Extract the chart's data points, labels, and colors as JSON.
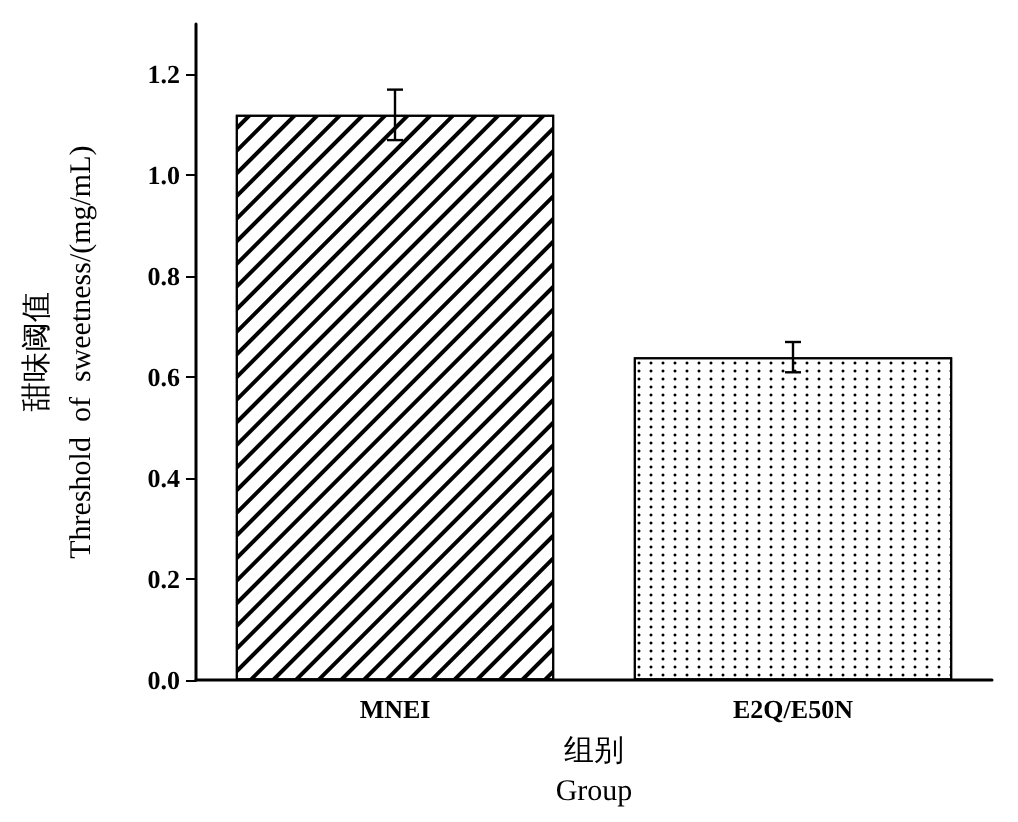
{
  "chart_data": {
    "type": "bar",
    "categories": [
      "MNEI",
      "E2Q/E50N"
    ],
    "values": [
      1.12,
      0.64
    ],
    "errors": [
      0.05,
      0.03
    ],
    "colors": [
      "#ffffff",
      "#ffffff"
    ],
    "xlabel": "组别\nGroup",
    "ylabel": "甜味阈值\nThreshold  of  sweetness/(mg/mL)",
    "ylim": [
      0,
      1.3
    ],
    "yticks": [
      {
        "value": 0,
        "label": "0.0"
      },
      0.2,
      0.4,
      0.6,
      0.8,
      {
        "value": 1,
        "label": "1.0"
      },
      1.2
    ],
    "grid": false
  }
}
